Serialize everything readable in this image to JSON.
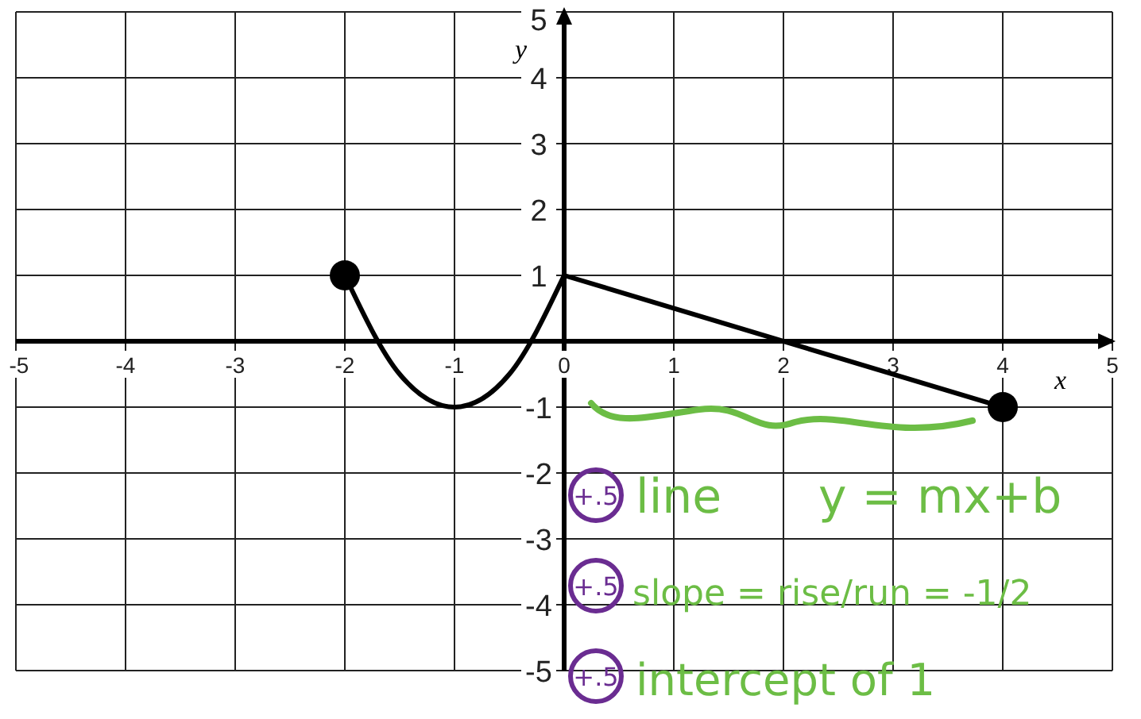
{
  "chart_data": {
    "type": "line",
    "xlabel": "x",
    "ylabel": "y",
    "xlim": [
      -5,
      5
    ],
    "ylim": [
      -5,
      5
    ],
    "xticks": [
      -5,
      -4,
      -3,
      -2,
      -1,
      0,
      1,
      2,
      3,
      4,
      5
    ],
    "yticks": [
      -5,
      -4,
      -3,
      -2,
      -1,
      1,
      2,
      3,
      4,
      5
    ],
    "grid": true,
    "marker": "none",
    "line_style": "solid",
    "series": [
      {
        "color": "#000000",
        "x": [
          -2,
          -1.5,
          -1,
          -0.5,
          0
        ],
        "values": [
          1,
          -0.5,
          -1,
          -0.5,
          1
        ]
      },
      {
        "color": "#000000",
        "x": [
          0,
          4
        ],
        "values": [
          1,
          -1
        ]
      },
      {
        "type": "scatter",
        "color": "#000000",
        "marker": "circle",
        "x": [
          -2,
          4
        ],
        "values": [
          1,
          -1
        ]
      }
    ],
    "annotations": [
      "+.5",
      "line",
      "y = mx+b",
      "+.5",
      "slope = rise/run = -1/2",
      "+.5",
      "intercept of 1"
    ]
  }
}
